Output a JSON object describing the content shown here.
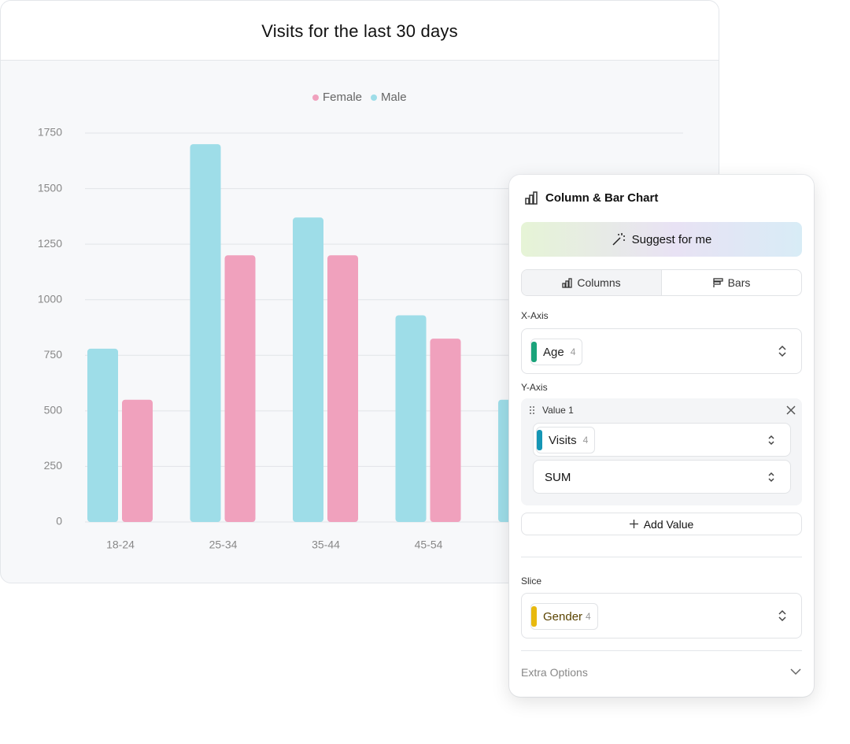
{
  "chart_data": {
    "type": "bar",
    "title": "Visits for the last 30 days",
    "categories": [
      "18-24",
      "25-34",
      "35-44",
      "45-54",
      null
    ],
    "series": [
      {
        "name": "Female",
        "color": "#f0a1bd",
        "values": [
          550,
          1200,
          1200,
          825,
          null
        ]
      },
      {
        "name": "Male",
        "color": "#9edde8",
        "values": [
          780,
          1700,
          1370,
          930,
          550
        ]
      }
    ],
    "ylim": [
      0,
      1750
    ],
    "yticks": [
      0,
      250,
      500,
      750,
      1000,
      1250,
      1500,
      1750
    ],
    "grid": true,
    "legend": "top"
  },
  "panel": {
    "title": "Column & Bar Chart",
    "suggest": "Suggest for me",
    "tabs": [
      "Columns",
      "Bars"
    ],
    "x_axis": {
      "label": "X-Axis",
      "field": "Age",
      "count": 4
    },
    "y_axis": {
      "label": "Y-Axis",
      "value_label": "Value 1",
      "field": "Visits",
      "count": 4,
      "aggregation": "SUM",
      "add": "Add Value"
    },
    "slice": {
      "label": "Slice",
      "field": "Gender",
      "count": 4
    },
    "extra": "Extra Options"
  }
}
